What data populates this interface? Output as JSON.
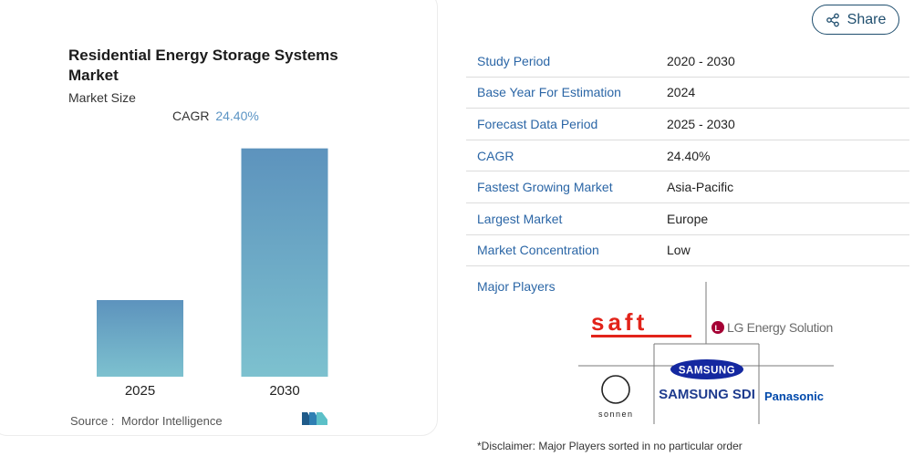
{
  "chart_card": {
    "title": "Residential Energy Storage Systems Market",
    "subtitle": "Market Size",
    "cagr_label": "CAGR",
    "cagr_value": "24.40%",
    "source_label": "Source :",
    "source_value": "Mordor Intelligence"
  },
  "chart_data": {
    "type": "bar",
    "categories": [
      "2025",
      "2030"
    ],
    "values": [
      1,
      2.98
    ],
    "title": "",
    "xlabel": "",
    "ylabel": "",
    "ylim": [
      0,
      3
    ],
    "grid": false,
    "gradient_top": "#5d93bd",
    "gradient_bottom": "#7dc1cf"
  },
  "share": {
    "label": "Share",
    "icon": "share-icon"
  },
  "info_table": [
    {
      "key": "Study Period",
      "value": "2020 - 2030"
    },
    {
      "key": "Base Year For Estimation",
      "value": "2024"
    },
    {
      "key": "Forecast Data Period",
      "value": "2025 - 2030"
    },
    {
      "key": "CAGR",
      "value": "24.40%"
    },
    {
      "key": "Fastest Growing Market",
      "value": "Asia-Pacific"
    },
    {
      "key": "Largest Market",
      "value": "Europe"
    },
    {
      "key": "Market Concentration",
      "value": "Low"
    }
  ],
  "major_players": {
    "label": "Major Players",
    "logos": {
      "saft": "saft",
      "lg": "LG Energy Solution",
      "sonnen": "sonnen",
      "samsung_top": "SAMSUNG",
      "samsung_sdi": "SAMSUNG SDI",
      "panasonic": "Panasonic"
    }
  },
  "disclaimer": "*Disclaimer: Major Players sorted in no particular order",
  "colors": {
    "link_blue": "#2b66a6",
    "accent": "#5b94c4",
    "saft_red": "#e2231a",
    "lg_red": "#a50034",
    "samsung_blue": "#1428a0",
    "panasonic_blue": "#0049ab"
  }
}
